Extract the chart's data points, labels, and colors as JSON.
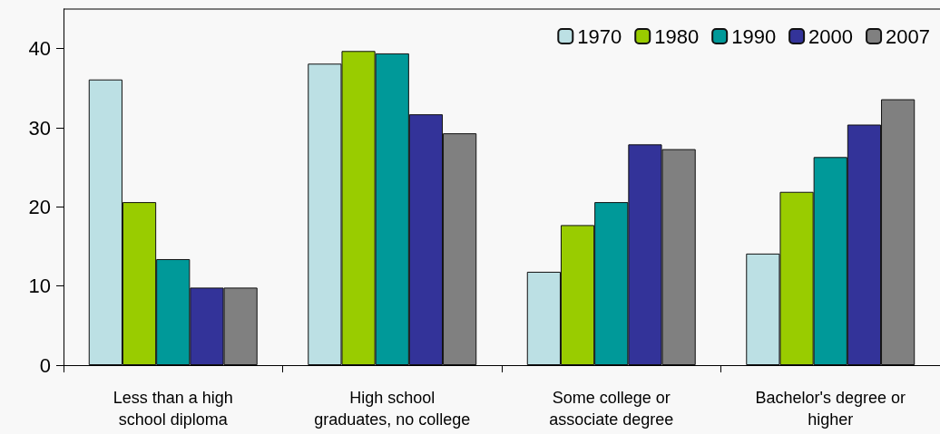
{
  "chart_data": {
    "type": "bar",
    "categories": [
      "Less than a high\nschool diploma",
      "High school\ngraduates, no college",
      "Some college or\nassociate degree",
      "Bachelor's degree or\nhigher"
    ],
    "series": [
      {
        "name": "1970",
        "color": "#bce0e4",
        "values": [
          36.1,
          38.1,
          11.8,
          14.1
        ]
      },
      {
        "name": "1980",
        "color": "#99cc00",
        "values": [
          20.6,
          39.7,
          17.7,
          21.9
        ]
      },
      {
        "name": "1990",
        "color": "#009999",
        "values": [
          13.4,
          39.4,
          20.6,
          26.3
        ]
      },
      {
        "name": "2000",
        "color": "#333399",
        "values": [
          9.8,
          31.7,
          27.9,
          30.4
        ]
      },
      {
        "name": "2007",
        "color": "#808080",
        "values": [
          9.8,
          29.3,
          27.3,
          33.6
        ]
      }
    ],
    "ylim": [
      0,
      45
    ],
    "yticks": [
      0,
      10,
      20,
      30,
      40
    ],
    "grid": false,
    "legend": "top right"
  }
}
